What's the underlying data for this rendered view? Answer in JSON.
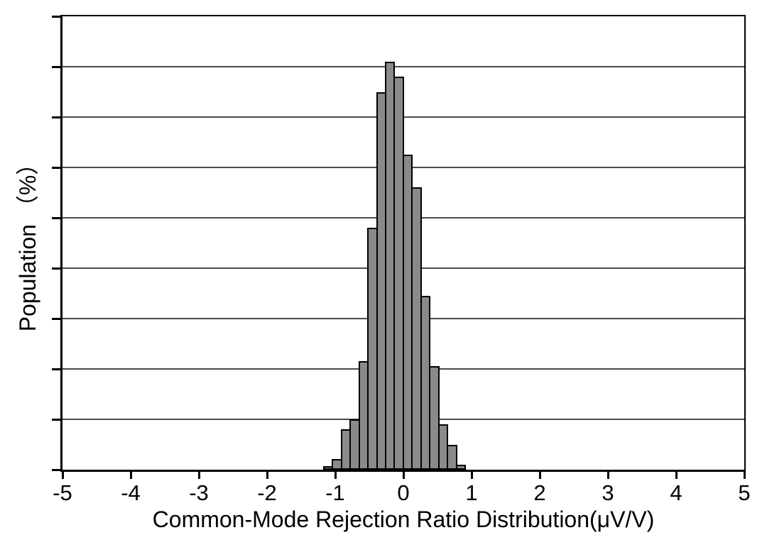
{
  "figure": {
    "background_color": "#ffffff",
    "axis_color": "#000000",
    "gridline_color": "#4a4a4a"
  },
  "chart_data": {
    "type": "bar",
    "subtype": "histogram",
    "title": "",
    "xlabel": "Common-Mode Rejection Ratio Distribution(μV/V)",
    "ylabel": "Population （%）",
    "xlim": [
      -5,
      5
    ],
    "ylim": [
      0,
      18
    ],
    "x_ticks": [
      -5,
      -4,
      -3,
      -2,
      -1,
      0,
      1,
      2,
      3,
      4,
      5
    ],
    "x_tick_labels": [
      "-5",
      "-4",
      "-3",
      "-2",
      "-1",
      "0",
      "1",
      "2",
      "3",
      "4",
      "5"
    ],
    "y_tick_step": 2,
    "y_tick_labels_visible": false,
    "grid": "horizontal",
    "legend": "none",
    "bin_start": -1.16,
    "bin_width": 0.13,
    "n_bins": 16,
    "bin_centers": [
      -1.095,
      -0.965,
      -0.835,
      -0.705,
      -0.575,
      -0.445,
      -0.315,
      -0.185,
      -0.055,
      0.075,
      0.205,
      0.335,
      0.465,
      0.595,
      0.725,
      0.855
    ],
    "values_percent": [
      0.14,
      0.42,
      1.6,
      2.0,
      4.3,
      9.6,
      15.0,
      16.2,
      15.6,
      12.5,
      11.2,
      6.9,
      4.1,
      1.8,
      1.0,
      0.2
    ],
    "bar_fill_color": "#8a8a8a",
    "bar_border_color": "#000000"
  }
}
